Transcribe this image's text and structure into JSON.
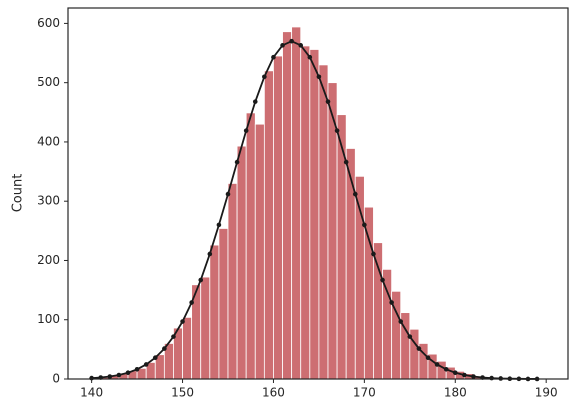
{
  "chart_data": {
    "type": "histogram",
    "ylabel": "Count",
    "bins": [
      140,
      141,
      142,
      143,
      144,
      145,
      146,
      147,
      148,
      149,
      150,
      151,
      152,
      153,
      154,
      155,
      156,
      157,
      158,
      159,
      160,
      161,
      162,
      163,
      164,
      165,
      166,
      167,
      168,
      169,
      170,
      171,
      172,
      173,
      174,
      175,
      176,
      177,
      178,
      179,
      180,
      181,
      182,
      183,
      184,
      185,
      186,
      187,
      188,
      189
    ],
    "values": [
      2,
      3,
      6,
      10,
      14,
      18,
      28,
      41,
      60,
      86,
      104,
      159,
      172,
      226,
      254,
      330,
      393,
      449,
      430,
      520,
      545,
      586,
      594,
      562,
      556,
      530,
      500,
      446,
      389,
      342,
      290,
      230,
      185,
      148,
      112,
      84,
      60,
      42,
      30,
      20,
      13,
      9,
      5,
      3,
      2,
      1,
      1,
      0,
      0
    ],
    "color": "#cd6e72",
    "line": {
      "color": "#1a1a1a",
      "x": [
        140,
        141,
        142,
        143,
        144,
        145,
        146,
        147,
        148,
        149,
        150,
        151,
        152,
        153,
        154,
        155,
        156,
        157,
        158,
        159,
        160,
        161,
        162,
        163,
        164,
        165,
        166,
        167,
        168,
        169,
        170,
        171,
        172,
        173,
        174,
        175,
        176,
        177,
        178,
        179,
        180,
        181,
        182,
        183,
        184,
        185,
        186,
        187,
        188,
        189
      ],
      "values": [
        1.5,
        2.5,
        4.2,
        6.7,
        10.6,
        16.4,
        24.5,
        35.9,
        51.3,
        71.5,
        97,
        129,
        167,
        211,
        260,
        312,
        366,
        419,
        468,
        510,
        543,
        563,
        570,
        563,
        543,
        510,
        468,
        419,
        366,
        312,
        260,
        211,
        167,
        129,
        97,
        71.5,
        51.3,
        35.9,
        24.5,
        16.4,
        10.6,
        6.7,
        4.2,
        2.5,
        1.5,
        0.9,
        0.5,
        0.3,
        0.1,
        0.1
      ]
    },
    "xlim": [
      137.4,
      192.4
    ],
    "ylim": [
      0,
      626
    ],
    "xticks": [
      140,
      150,
      160,
      170,
      180,
      190
    ],
    "yticks": [
      0,
      100,
      200,
      300,
      400,
      500,
      600
    ]
  }
}
